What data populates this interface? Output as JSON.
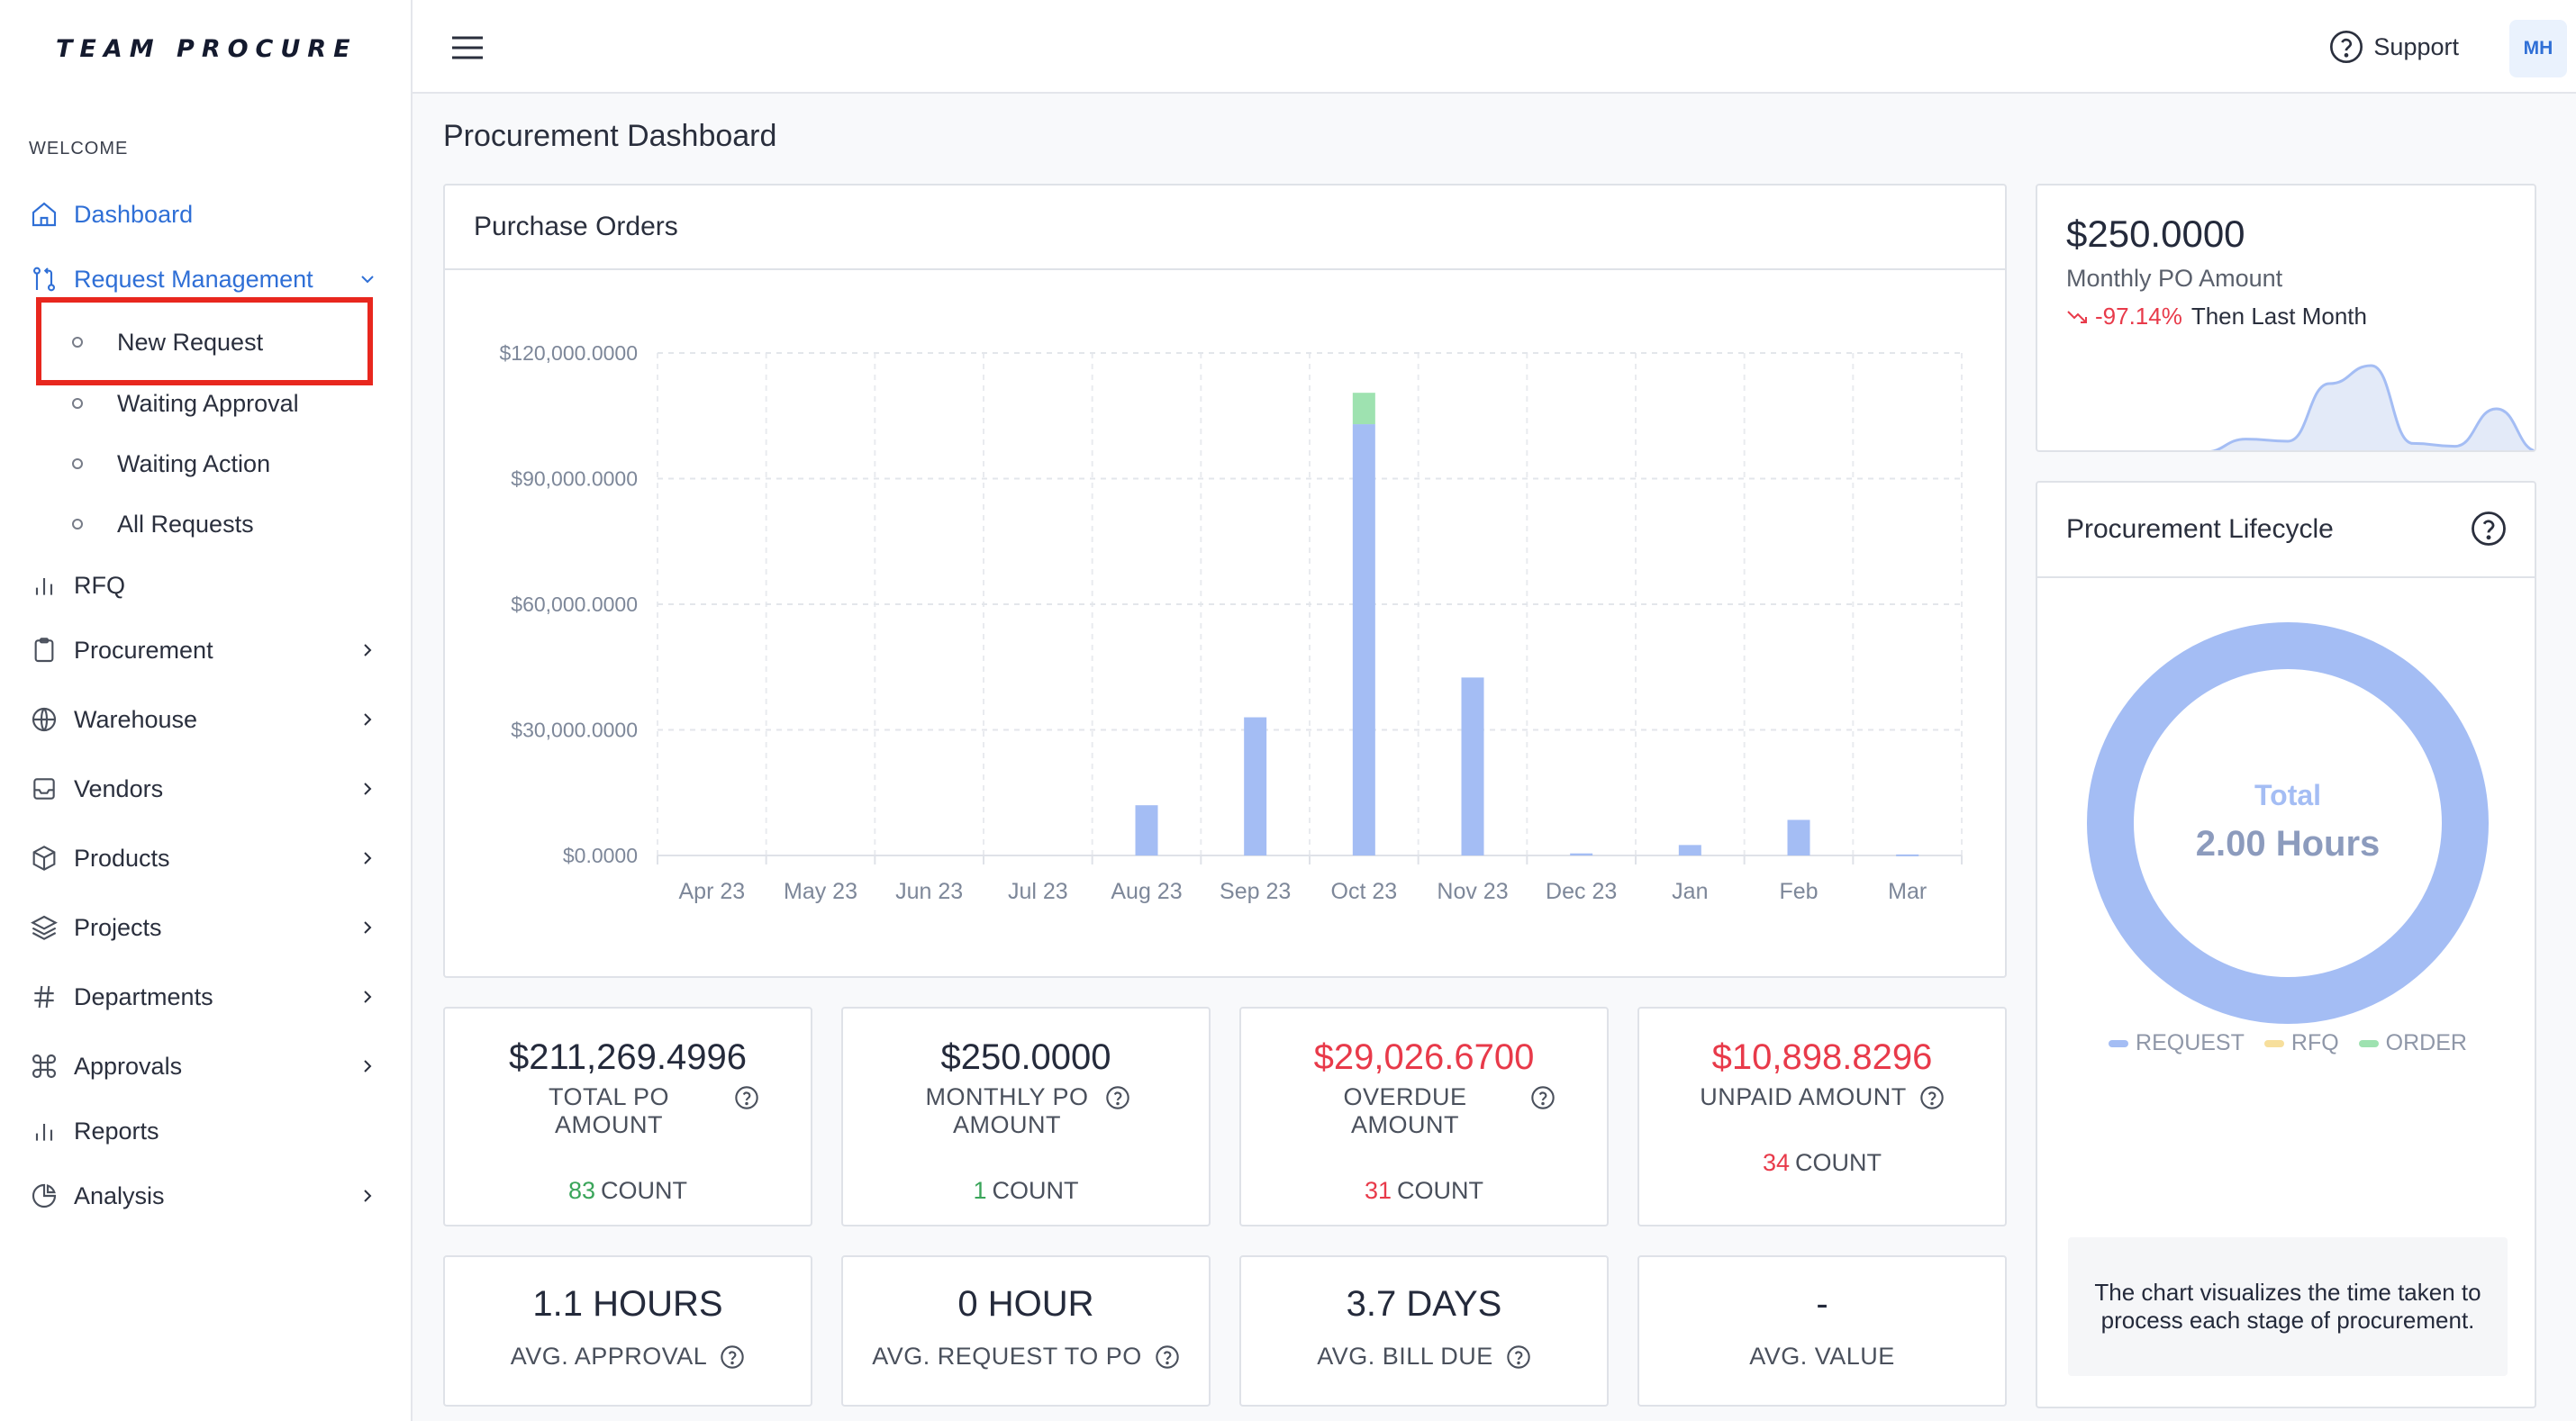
{
  "app": {
    "logo": "TEAM PROCURE",
    "section_label": "WELCOME"
  },
  "sidebar": {
    "items": [
      {
        "label": "Dashboard",
        "icon": "home-icon"
      },
      {
        "label": "Request Management",
        "icon": "git-pull-icon"
      },
      {
        "label": "RFQ",
        "icon": "bar-chart-icon"
      },
      {
        "label": "Procurement",
        "icon": "clipboard-icon"
      },
      {
        "label": "Warehouse",
        "icon": "globe-icon"
      },
      {
        "label": "Vendors",
        "icon": "inbox-icon"
      },
      {
        "label": "Products",
        "icon": "box-icon"
      },
      {
        "label": "Projects",
        "icon": "layers-icon"
      },
      {
        "label": "Departments",
        "icon": "hash-icon"
      },
      {
        "label": "Approvals",
        "icon": "command-icon"
      },
      {
        "label": "Reports",
        "icon": "bar-chart-icon"
      },
      {
        "label": "Analysis",
        "icon": "pie-chart-icon"
      }
    ],
    "request_sub": [
      "New Request",
      "Waiting Approval",
      "Waiting Action",
      "All Requests"
    ]
  },
  "topbar": {
    "support_label": "Support",
    "avatar_initials": "MH"
  },
  "page": {
    "title": "Procurement Dashboard"
  },
  "purchase_orders": {
    "title": "Purchase Orders"
  },
  "chart_data": {
    "type": "bar",
    "stacked": true,
    "categories": [
      "Apr 23",
      "May 23",
      "Jun 23",
      "Jul 23",
      "Aug 23",
      "Sep 23",
      "Oct 23",
      "Nov 23",
      "Dec 23",
      "Jan",
      "Feb",
      "Mar"
    ],
    "series": [
      {
        "values": [
          0,
          0,
          0,
          0,
          12000,
          33000,
          103000,
          42500,
          500,
          2500,
          8500,
          250
        ],
        "color": "#a4bdf4"
      },
      {
        "values": [
          0,
          0,
          0,
          0,
          0,
          0,
          7500,
          0,
          0,
          0,
          0,
          0
        ],
        "color": "#9ee2b0"
      }
    ],
    "y_ticks": [
      "$0.0000",
      "$30,000.0000",
      "$60,000.0000",
      "$90,000.0000",
      "$120,000.0000"
    ],
    "ylim": [
      0,
      120000
    ],
    "grid": true
  },
  "monthly": {
    "amount": "$250.0000",
    "label": "Monthly PO Amount",
    "change": "-97.14%",
    "change_suffix": "Then Last Month",
    "sparkline": [
      0,
      0,
      0,
      0,
      0,
      1800,
      1500,
      9500,
      12000,
      1200,
      800,
      6000,
      100
    ]
  },
  "lifecycle": {
    "title": "Procurement Lifecycle",
    "center_label": "Total",
    "center_value": "2.00 Hours",
    "legend": [
      {
        "label": "REQUEST",
        "color": "#a4bdf4"
      },
      {
        "label": "RFQ",
        "color": "#f7df9c"
      },
      {
        "label": "ORDER",
        "color": "#9ee2b0"
      }
    ],
    "note": "The chart visualizes the time taken to process each stage of procurement."
  },
  "stats": [
    {
      "value": "$211,269.4996",
      "label": "TOTAL PO AMOUNT",
      "count": "83",
      "count_label": "COUNT",
      "color": "dark",
      "count_color": "green"
    },
    {
      "value": "$250.0000",
      "label": "MONTHLY PO AMOUNT",
      "count": "1",
      "count_label": "COUNT",
      "color": "dark",
      "count_color": "green"
    },
    {
      "value": "$29,026.6700",
      "label": "OVERDUE AMOUNT",
      "count": "31",
      "count_label": "COUNT",
      "color": "red",
      "count_color": "red"
    },
    {
      "value": "$10,898.8296",
      "label": "UNPAID AMOUNT",
      "count": "34",
      "count_label": "COUNT",
      "color": "red",
      "count_color": "red"
    }
  ],
  "stats2": [
    {
      "value": "1.1 HOURS",
      "label": "AVG. APPROVAL",
      "help": true
    },
    {
      "value": "0 HOUR",
      "label": "AVG. REQUEST TO PO",
      "help": true
    },
    {
      "value": "3.7 DAYS",
      "label": "AVG. BILL DUE",
      "help": true
    },
    {
      "value": "-",
      "label": "AVG. VALUE",
      "help": false
    }
  ]
}
